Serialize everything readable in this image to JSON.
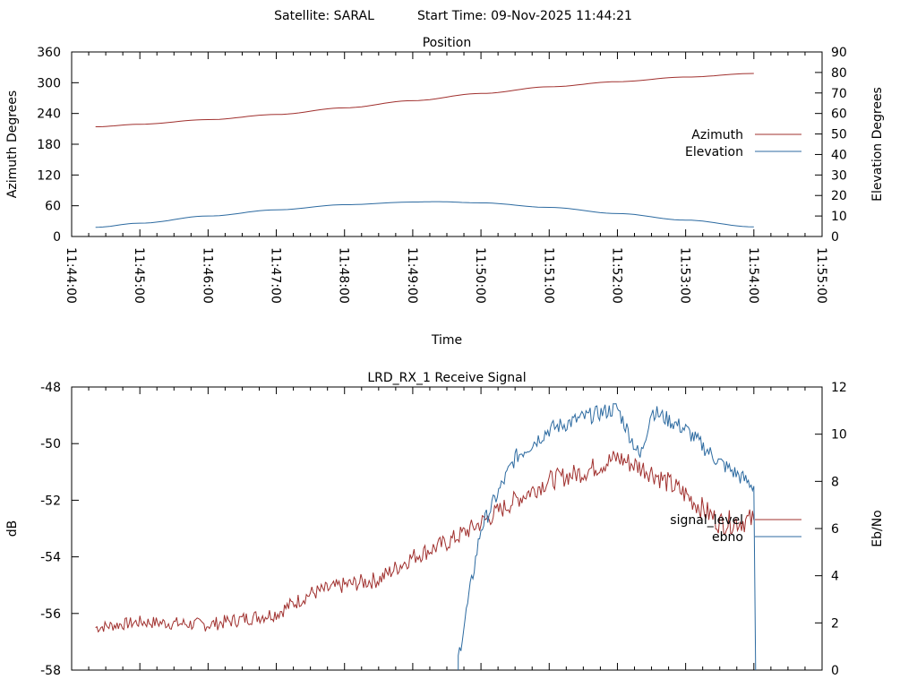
{
  "header": {
    "satellite": "Satellite: SARAL",
    "start_time": "Start Time: 09-Nov-2025 11:44:21"
  },
  "chart_data": [
    {
      "type": "line",
      "title": "Position",
      "xlabel": "Time",
      "ylabel": "Azimuth Degrees",
      "y2label": "Elevation Degrees",
      "xlim": [
        "11:44:00",
        "11:55:00"
      ],
      "x_ticks": [
        "11:44:00",
        "11:45:00",
        "11:46:00",
        "11:47:00",
        "11:48:00",
        "11:49:00",
        "11:50:00",
        "11:51:00",
        "11:52:00",
        "11:53:00",
        "11:54:00",
        "11:55:00"
      ],
      "ylim": [
        0,
        360
      ],
      "y_ticks": [
        "0",
        "60",
        "120",
        "180",
        "240",
        "300",
        "360"
      ],
      "y2lim": [
        0,
        90
      ],
      "y2_ticks": [
        "0",
        "10",
        "20",
        "30",
        "40",
        "50",
        "60",
        "70",
        "80",
        "90"
      ],
      "legend_position": "right",
      "series": [
        {
          "name": "Azimuth",
          "axis": "left",
          "color": "#a0302e",
          "x": [
            "11:44:21",
            "11:45:00",
            "11:46:00",
            "11:47:00",
            "11:48:00",
            "11:49:00",
            "11:50:00",
            "11:51:00",
            "11:52:00",
            "11:53:00",
            "11:54:00"
          ],
          "values": [
            214,
            219,
            228,
            238,
            251,
            265,
            279,
            292,
            302,
            311,
            318
          ]
        },
        {
          "name": "Elevation",
          "axis": "right",
          "color": "#2c6aa0",
          "x": [
            "11:44:21",
            "11:45:00",
            "11:46:00",
            "11:47:00",
            "11:48:00",
            "11:49:00",
            "11:49:20",
            "11:50:00",
            "11:51:00",
            "11:52:00",
            "11:53:00",
            "11:54:00"
          ],
          "values": [
            4.5,
            6.5,
            10,
            13,
            15.5,
            16.8,
            17,
            16.4,
            14.2,
            11.2,
            8,
            4.7
          ]
        }
      ]
    },
    {
      "type": "line",
      "title": "LRD_RX_1 Receive Signal",
      "xlabel": "",
      "ylabel": "dB",
      "y2label": "Eb/No",
      "xlim": [
        "11:44:00",
        "11:55:00"
      ],
      "ylim": [
        -58,
        -48
      ],
      "y_ticks": [
        "-58",
        "-56",
        "-54",
        "-52",
        "-50",
        "-48"
      ],
      "y2lim": [
        0,
        12
      ],
      "y2_ticks": [
        "0",
        "2",
        "4",
        "6",
        "8",
        "10",
        "12"
      ],
      "legend_position": "right",
      "series": [
        {
          "name": "signal_level",
          "axis": "left",
          "color": "#a0302e",
          "x": [
            "11:44:21",
            "11:45:00",
            "11:46:00",
            "11:46:30",
            "11:47:00",
            "11:47:30",
            "11:48:00",
            "11:48:30",
            "11:49:00",
            "11:49:30",
            "11:50:00",
            "11:50:30",
            "11:51:00",
            "11:51:30",
            "11:52:00",
            "11:52:30",
            "11:53:00",
            "11:53:30",
            "11:54:00"
          ],
          "values": [
            -56.5,
            -56.3,
            -56.4,
            -56.2,
            -56.0,
            -55.3,
            -55.0,
            -54.8,
            -54.0,
            -53.5,
            -52.8,
            -52.0,
            -51.3,
            -51.0,
            -50.5,
            -51.0,
            -51.8,
            -52.8,
            -52.7
          ]
        },
        {
          "name": "ebno",
          "axis": "right",
          "color": "#2c6aa0",
          "x": [
            "11:49:40",
            "11:50:00",
            "11:50:30",
            "11:51:00",
            "11:51:30",
            "11:52:00",
            "11:52:20",
            "11:52:30",
            "11:53:00",
            "11:53:30",
            "11:54:00"
          ],
          "values": [
            0.5,
            6.0,
            9.0,
            10.2,
            10.7,
            11.1,
            9.0,
            11.0,
            10.2,
            8.8,
            7.8
          ]
        }
      ]
    }
  ]
}
